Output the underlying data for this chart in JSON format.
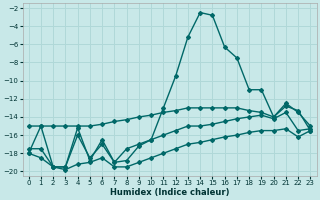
{
  "xlabel": "Humidex (Indice chaleur)",
  "xlim": [
    -0.5,
    23.5
  ],
  "ylim": [
    -20.5,
    -1.5
  ],
  "yticks": [
    -20,
    -18,
    -16,
    -14,
    -12,
    -10,
    -8,
    -6,
    -4,
    -2
  ],
  "xticks": [
    0,
    1,
    2,
    3,
    4,
    5,
    6,
    7,
    8,
    9,
    10,
    11,
    12,
    13,
    14,
    15,
    16,
    17,
    18,
    19,
    20,
    21,
    22,
    23
  ],
  "bg_color": "#c8e8e8",
  "grid_color": "#b0d8d8",
  "line_color": "#006868",
  "lines": [
    {
      "x": [
        0,
        1,
        2,
        3,
        4,
        5,
        6,
        7,
        8,
        9,
        10,
        11,
        12,
        13,
        14,
        15,
        16,
        17,
        18,
        19,
        20,
        21,
        22,
        23
      ],
      "y": [
        -18.0,
        -15.0,
        -19.5,
        -19.5,
        -15.2,
        -18.8,
        -16.5,
        -19.0,
        -18.8,
        -17.2,
        -16.5,
        -13.0,
        -9.5,
        -5.2,
        -2.5,
        -2.8,
        -6.3,
        -7.5,
        -11.0,
        -11.0,
        -14.0,
        -12.5,
        -13.5,
        -15.0
      ],
      "marker": "D",
      "markersize": 2.0,
      "linewidth": 1.0
    },
    {
      "x": [
        0,
        1,
        2,
        3,
        4,
        5,
        6,
        7,
        8,
        9,
        10,
        11,
        12,
        13,
        14,
        15,
        16,
        17,
        18,
        19,
        20,
        21,
        22,
        23
      ],
      "y": [
        -15.0,
        -15.0,
        -15.0,
        -15.0,
        -15.0,
        -15.0,
        -14.8,
        -14.5,
        -14.3,
        -14.0,
        -13.8,
        -13.5,
        -13.3,
        -13.0,
        -13.0,
        -13.0,
        -13.0,
        -13.0,
        -13.3,
        -13.5,
        -14.0,
        -12.8,
        -13.3,
        -15.5
      ],
      "marker": "D",
      "markersize": 2.0,
      "linewidth": 1.0
    },
    {
      "x": [
        0,
        1,
        2,
        3,
        4,
        5,
        6,
        7,
        8,
        9,
        10,
        11,
        12,
        13,
        14,
        15,
        16,
        17,
        18,
        19,
        20,
        21,
        22,
        23
      ],
      "y": [
        -17.5,
        -17.5,
        -19.5,
        -19.5,
        -16.0,
        -18.5,
        -17.0,
        -19.0,
        -17.5,
        -17.0,
        -16.5,
        -16.0,
        -15.5,
        -15.0,
        -15.0,
        -14.8,
        -14.5,
        -14.2,
        -14.0,
        -13.8,
        -14.2,
        -13.5,
        -15.5,
        -15.3
      ],
      "marker": "D",
      "markersize": 2.0,
      "linewidth": 1.0
    },
    {
      "x": [
        0,
        1,
        2,
        3,
        4,
        5,
        6,
        7,
        8,
        9,
        10,
        11,
        12,
        13,
        14,
        15,
        16,
        17,
        18,
        19,
        20,
        21,
        22,
        23
      ],
      "y": [
        -18.0,
        -18.5,
        -19.5,
        -19.8,
        -19.2,
        -19.0,
        -18.5,
        -19.5,
        -19.5,
        -19.0,
        -18.5,
        -18.0,
        -17.5,
        -17.0,
        -16.8,
        -16.5,
        -16.2,
        -16.0,
        -15.7,
        -15.5,
        -15.5,
        -15.3,
        -16.2,
        -15.5
      ],
      "marker": "D",
      "markersize": 2.0,
      "linewidth": 1.0
    }
  ]
}
